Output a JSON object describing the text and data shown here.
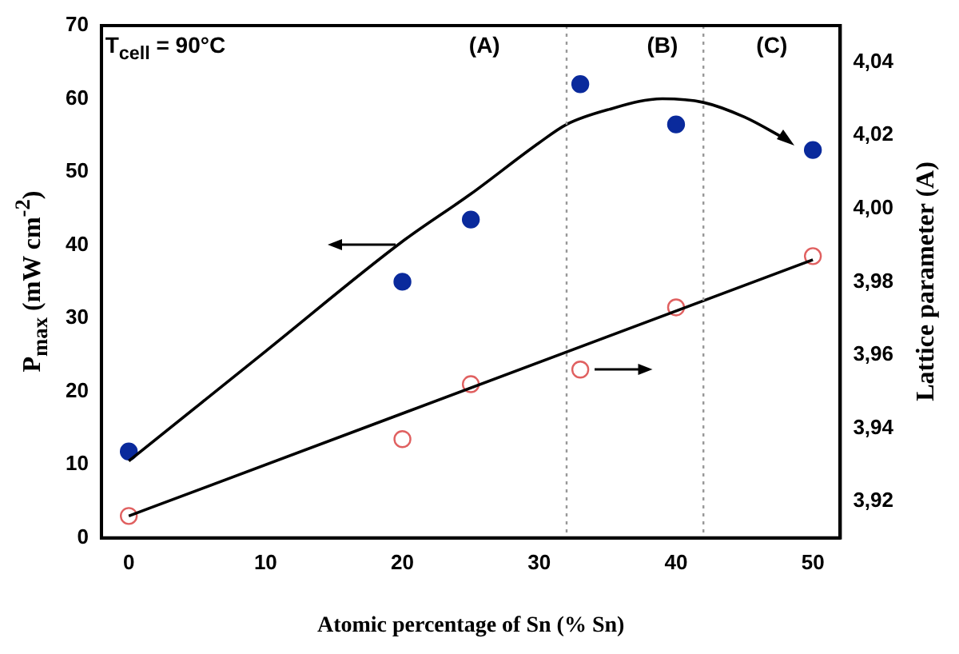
{
  "chart_data": {
    "type": "scatter",
    "xlabel": "Atomic percentage of Sn (% Sn)",
    "ylabel": "P$_{max}$ (mW cm$^{-2}$)",
    "y2label": "Lattice parameter (A)",
    "annotations": [
      "T$_{cell}$ = 90°C",
      "(A)",
      "(B)",
      "(C)"
    ],
    "xlim": [
      -2,
      52
    ],
    "xticks": [
      0,
      10,
      20,
      30,
      40,
      50
    ],
    "ylim": [
      0,
      70
    ],
    "yticks": [
      0,
      10,
      20,
      30,
      40,
      50,
      60,
      70
    ],
    "y2lim": [
      3.91,
      4.05
    ],
    "y2ticks": [
      {
        "value": 3.92,
        "label": "3,92"
      },
      {
        "value": 3.94,
        "label": "3,94"
      },
      {
        "value": 3.96,
        "label": "3,96"
      },
      {
        "value": 3.98,
        "label": "3,98"
      },
      {
        "value": 4.0,
        "label": "4,00"
      },
      {
        "value": 4.02,
        "label": "4,02"
      },
      {
        "value": 4.04,
        "label": "4,04"
      }
    ],
    "series": [
      {
        "type": "scatter",
        "color": "#0a2a9c",
        "marker": "circle",
        "x": [
          0,
          20,
          25,
          33,
          40,
          50
        ],
        "values": [
          11.8,
          35,
          43.5,
          62,
          56.5,
          53
        ]
      },
      {
        "type": "scatter",
        "color": "#e06060",
        "marker": "circle",
        "axis": "y2",
        "x": [
          0,
          20,
          25,
          33,
          40,
          50
        ],
        "values": [
          3.916,
          3.937,
          3.952,
          3.956,
          3.973,
          3.987
        ]
      },
      {
        "type": "line",
        "color": "#000000",
        "marker": "none",
        "x": [
          0,
          10,
          20,
          25,
          30,
          32,
          35,
          39,
          42,
          45,
          48
        ],
        "values": [
          10.5,
          25.5,
          40.5,
          47,
          54,
          56.5,
          58.5,
          60,
          59.5,
          57.5,
          54.5
        ]
      },
      {
        "type": "line",
        "color": "#000000",
        "marker": "none",
        "axis": "y2",
        "x": [
          0,
          50
        ],
        "values": [
          3.916,
          3.986
        ]
      }
    ],
    "ref_lines": [
      {
        "axis": "x",
        "value": 32,
        "color": "#999999",
        "line_style": "dotted"
      },
      {
        "axis": "x",
        "value": 42,
        "color": "#999999",
        "line_style": "dotted"
      }
    ],
    "grid": false,
    "legend": false
  }
}
